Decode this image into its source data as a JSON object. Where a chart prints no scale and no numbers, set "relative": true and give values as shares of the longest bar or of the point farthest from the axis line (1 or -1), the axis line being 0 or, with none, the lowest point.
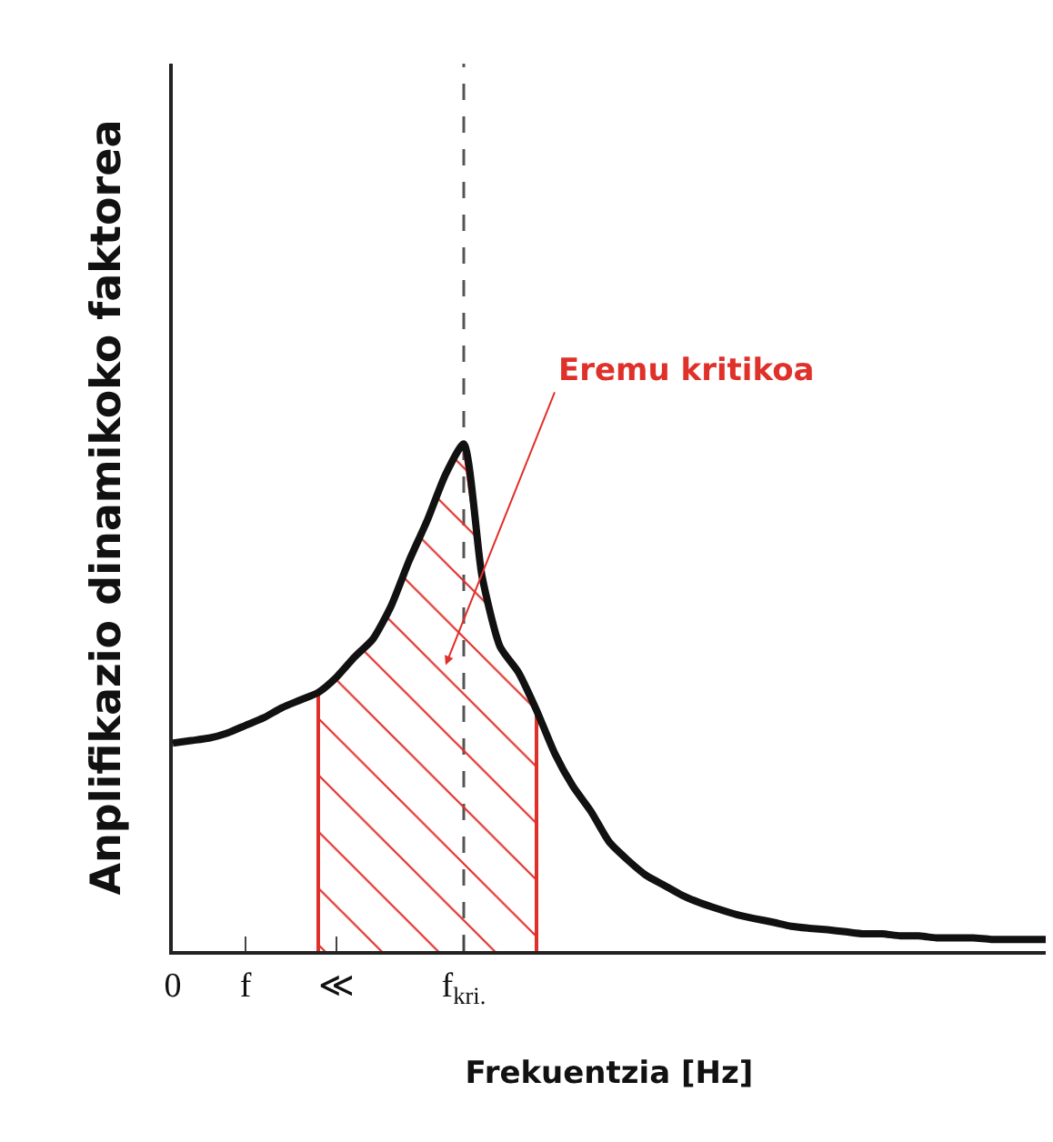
{
  "chart_data": {
    "type": "line",
    "relative": true,
    "xlabel": "Frekuentzia [Hz]",
    "ylabel": "Anplifikazio dinamikoko faktorea",
    "categories": [
      "0",
      null,
      null,
      null,
      "f",
      null,
      null,
      null,
      null,
      "≪",
      null,
      null,
      null,
      null,
      null,
      null,
      "f$_{kri.}$",
      null,
      null,
      null,
      null,
      null,
      null,
      null,
      null,
      null,
      null,
      null,
      null,
      null,
      null,
      null,
      null,
      null,
      null,
      null,
      null,
      null,
      null,
      null,
      null,
      null,
      null,
      null,
      null,
      null,
      null,
      null,
      null
    ],
    "series": [
      {
        "color": "#111111",
        "values": [
          0.41,
          0.415,
          0.42,
          0.43,
          0.445,
          0.46,
          0.48,
          0.495,
          0.51,
          0.54,
          0.58,
          0.615,
          0.68,
          0.77,
          0.85,
          0.94,
          1.0,
          0.74,
          0.6,
          0.55,
          0.475,
          0.39,
          0.325,
          0.275,
          0.215,
          0.18,
          0.15,
          0.13,
          0.11,
          0.095,
          0.083,
          0.072,
          0.064,
          0.057,
          0.049,
          0.045,
          0.042,
          0.038,
          0.034,
          0.034,
          0.03,
          0.03,
          0.026,
          0.026,
          0.026,
          0.023,
          0.023,
          0.023,
          0.023
        ]
      },
      {
        "type": "area",
        "name": "Eremu kritikoa",
        "color": "#e0302a",
        "values": [
          null,
          null,
          null,
          null,
          null,
          null,
          null,
          null,
          0.51,
          0.54,
          0.58,
          0.615,
          0.68,
          0.77,
          0.85,
          0.94,
          1.0,
          0.74,
          0.6,
          0.55,
          0.475,
          null,
          null,
          null,
          null,
          null,
          null,
          null,
          null,
          null,
          null,
          null,
          null,
          null,
          null,
          null,
          null,
          null,
          null,
          null,
          null,
          null,
          null,
          null,
          null,
          null,
          null,
          null,
          null
        ]
      }
    ],
    "ref_lines": [
      {
        "axis": "x",
        "value": "f$_{kri.}$",
        "color": "#555555",
        "line_style": "dashed"
      }
    ]
  }
}
